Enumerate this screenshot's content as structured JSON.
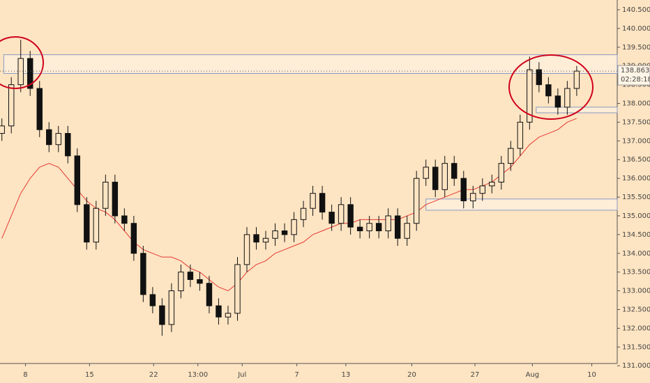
{
  "chart_data": {
    "type": "candlestick",
    "x": [
      0,
      1,
      2,
      3,
      4,
      5,
      6,
      7,
      8,
      9,
      10,
      11,
      12,
      13,
      14,
      15,
      16,
      17,
      18,
      19,
      20,
      21,
      22,
      23,
      24,
      25,
      26,
      27,
      28,
      29,
      30,
      31,
      32,
      33,
      34,
      35,
      36,
      37,
      38,
      39,
      40,
      41,
      42,
      43,
      44,
      45,
      46,
      47,
      48,
      49,
      50,
      51,
      52,
      53,
      54,
      55,
      56,
      57,
      58,
      59,
      60,
      61
    ],
    "open": [
      137.2,
      137.4,
      138.5,
      139.2,
      138.4,
      137.3,
      136.9,
      137.2,
      136.6,
      135.3,
      134.3,
      135.2,
      135.9,
      135.0,
      134.8,
      134.0,
      132.9,
      132.6,
      132.1,
      133.0,
      133.5,
      133.3,
      133.2,
      132.6,
      132.3,
      132.4,
      133.7,
      134.5,
      134.3,
      134.4,
      134.6,
      134.5,
      134.9,
      135.2,
      135.6,
      135.1,
      134.8,
      135.3,
      134.7,
      134.6,
      134.8,
      134.6,
      135.0,
      134.4,
      134.8,
      136.0,
      136.3,
      135.7,
      136.4,
      136.0,
      135.4,
      135.6,
      135.8,
      135.9,
      136.4,
      136.8,
      137.5,
      138.9,
      138.5,
      138.2,
      137.9,
      138.4
    ],
    "high": [
      137.6,
      138.7,
      139.7,
      139.4,
      138.6,
      137.5,
      137.4,
      137.4,
      136.8,
      135.5,
      135.4,
      136.1,
      136.1,
      135.2,
      135.0,
      134.2,
      133.1,
      132.8,
      133.2,
      133.7,
      133.7,
      133.5,
      133.4,
      132.8,
      132.6,
      133.9,
      134.7,
      134.7,
      134.6,
      134.8,
      134.8,
      135.1,
      135.4,
      135.8,
      135.8,
      135.3,
      135.5,
      135.5,
      134.9,
      135.0,
      135.0,
      135.2,
      135.2,
      135.0,
      136.2,
      136.5,
      136.5,
      136.6,
      136.6,
      136.2,
      135.8,
      136.0,
      136.1,
      136.6,
      137.0,
      137.7,
      139.25,
      139.1,
      138.7,
      138.4,
      138.6,
      139.0
    ],
    "low": [
      137.0,
      137.2,
      138.3,
      138.2,
      137.1,
      136.7,
      136.7,
      136.4,
      135.1,
      134.1,
      134.1,
      135.0,
      134.8,
      134.6,
      133.8,
      132.7,
      132.4,
      131.8,
      131.9,
      132.8,
      133.1,
      133.0,
      132.4,
      132.1,
      132.1,
      132.2,
      133.5,
      134.1,
      134.1,
      134.2,
      134.3,
      134.3,
      134.7,
      135.0,
      134.9,
      134.6,
      134.6,
      134.5,
      134.4,
      134.4,
      134.4,
      134.4,
      134.2,
      134.2,
      134.6,
      135.8,
      135.5,
      135.5,
      135.8,
      135.2,
      135.2,
      135.4,
      135.6,
      135.7,
      136.2,
      136.6,
      137.3,
      138.3,
      138.0,
      137.7,
      137.7,
      138.2
    ],
    "close": [
      137.4,
      138.5,
      139.2,
      138.4,
      137.3,
      136.9,
      137.2,
      136.6,
      135.3,
      134.3,
      135.2,
      135.9,
      135.0,
      134.8,
      134.0,
      132.9,
      132.6,
      132.1,
      133.0,
      133.5,
      133.3,
      133.2,
      132.6,
      132.3,
      132.4,
      133.7,
      134.5,
      134.3,
      134.4,
      134.6,
      134.5,
      134.9,
      135.2,
      135.6,
      135.1,
      134.8,
      135.3,
      134.7,
      134.6,
      134.8,
      134.6,
      135.0,
      134.4,
      134.8,
      136.0,
      136.3,
      135.7,
      136.4,
      136.0,
      135.4,
      135.6,
      135.8,
      135.9,
      136.4,
      136.8,
      137.5,
      138.9,
      138.5,
      138.2,
      137.9,
      138.4,
      138.863
    ],
    "moving_average": {
      "color": "#e53935",
      "values": [
        134.4,
        135.0,
        135.6,
        136.0,
        136.3,
        136.4,
        136.3,
        136.0,
        135.7,
        135.4,
        135.2,
        135.1,
        134.9,
        134.6,
        134.3,
        134.1,
        134.0,
        133.9,
        133.9,
        133.8,
        133.6,
        133.5,
        133.3,
        133.1,
        133.0,
        133.2,
        133.5,
        133.7,
        133.8,
        134.0,
        134.1,
        134.2,
        134.3,
        134.5,
        134.6,
        134.7,
        134.8,
        134.8,
        134.9,
        134.9,
        134.9,
        134.9,
        134.9,
        135.0,
        135.1,
        135.3,
        135.4,
        135.5,
        135.6,
        135.7,
        135.7,
        135.8,
        135.9,
        136.1,
        136.3,
        136.6,
        136.9,
        137.1,
        137.2,
        137.3,
        137.5,
        137.6
      ]
    },
    "zones": [
      {
        "low": 138.8,
        "high": 139.3,
        "x_start": 0.2
      },
      {
        "low": 135.15,
        "high": 135.45,
        "x_start": 45
      },
      {
        "low": 137.75,
        "high": 137.9,
        "x_start": 56.7
      }
    ],
    "last_price": 138.863,
    "countdown": "02:28:18",
    "xlim": [
      -0.2,
      65.3
    ],
    "ylim": [
      131.06,
      140.76
    ],
    "xticks": [
      {
        "value": 2.5,
        "label": "8"
      },
      {
        "value": 9.3,
        "label": "15"
      },
      {
        "value": 16.1,
        "label": "22"
      },
      {
        "value": 20.8,
        "label": "13:00"
      },
      {
        "value": 25.5,
        "label": "Jul"
      },
      {
        "value": 31.3,
        "label": "7"
      },
      {
        "value": 36.5,
        "label": "13"
      },
      {
        "value": 43.5,
        "label": "20"
      },
      {
        "value": 50.2,
        "label": "27"
      },
      {
        "value": 56.3,
        "label": "Aug"
      },
      {
        "value": 62.6,
        "label": "10"
      }
    ],
    "yticks": [
      {
        "value": 131,
        "label": "131.000"
      },
      {
        "value": 131.5,
        "label": "131.500"
      },
      {
        "value": 132,
        "label": "132.000"
      },
      {
        "value": 132.5,
        "label": "132.500"
      },
      {
        "value": 133,
        "label": "133.000"
      },
      {
        "value": 133.5,
        "label": "133.500"
      },
      {
        "value": 134,
        "label": "134.000"
      },
      {
        "value": 134.5,
        "label": "134.500"
      },
      {
        "value": 135,
        "label": "135.000"
      },
      {
        "value": 135.5,
        "label": "135.500"
      },
      {
        "value": 136,
        "label": "136.000"
      },
      {
        "value": 136.5,
        "label": "136.500"
      },
      {
        "value": 137,
        "label": "137.000"
      },
      {
        "value": 137.5,
        "label": "137.500"
      },
      {
        "value": 138,
        "label": "138.000"
      },
      {
        "value": 138.5,
        "label": "138.500"
      },
      {
        "value": 139,
        "label": "139.000"
      },
      {
        "value": 139.5,
        "label": "139.500"
      },
      {
        "value": 140,
        "label": "140.000"
      },
      {
        "value": 140.5,
        "label": "140.500"
      }
    ]
  }
}
